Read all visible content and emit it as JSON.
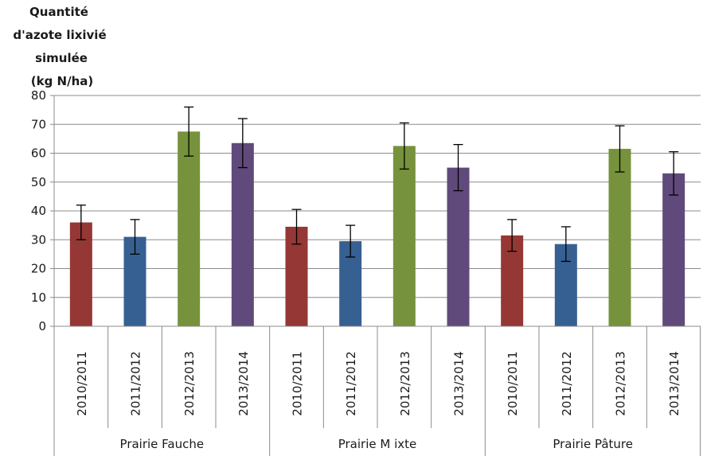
{
  "chart_data": {
    "type": "bar",
    "ylabel_lines": [
      "Quantité",
      "d'azote lixivié",
      "simulée",
      "(kg N/ha)"
    ],
    "ylim": [
      0,
      80
    ],
    "yticks": [
      0,
      10,
      20,
      30,
      40,
      50,
      60,
      70,
      80
    ],
    "grid": true,
    "groups": [
      {
        "name": "Prairie Fauche",
        "bars": [
          {
            "category": "2010/2011",
            "value": 36,
            "error": 6,
            "color": "#953735"
          },
          {
            "category": "2011/2012",
            "value": 31,
            "error": 6,
            "color": "#376092"
          },
          {
            "category": "2012/2013",
            "value": 67.5,
            "error": 8.5,
            "color": "#76923c"
          },
          {
            "category": "2013/2014",
            "value": 63.5,
            "error": 8.5,
            "color": "#604a7b"
          }
        ]
      },
      {
        "name": "Prairie M ixte",
        "bars": [
          {
            "category": "2010/2011",
            "value": 34.5,
            "error": 6,
            "color": "#953735"
          },
          {
            "category": "2011/2012",
            "value": 29.5,
            "error": 5.5,
            "color": "#376092"
          },
          {
            "category": "2012/2013",
            "value": 62.5,
            "error": 8,
            "color": "#76923c"
          },
          {
            "category": "2013/2014",
            "value": 55,
            "error": 8,
            "color": "#604a7b"
          }
        ]
      },
      {
        "name": "Prairie Pâture",
        "bars": [
          {
            "category": "2010/2011",
            "value": 31.5,
            "error": 5.5,
            "color": "#953735"
          },
          {
            "category": "2011/2012",
            "value": 28.5,
            "error": 6,
            "color": "#376092"
          },
          {
            "category": "2012/2013",
            "value": 61.5,
            "error": 8,
            "color": "#76923c"
          },
          {
            "category": "2013/2014",
            "value": 53,
            "error": 7.5,
            "color": "#604a7b"
          }
        ]
      }
    ]
  }
}
